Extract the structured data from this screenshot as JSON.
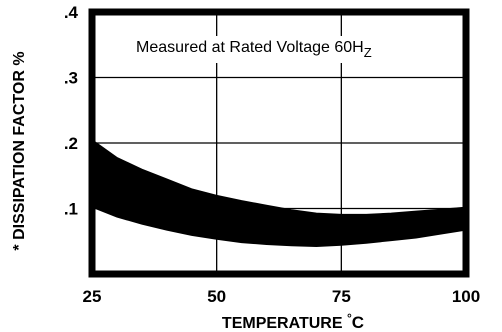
{
  "chart_data": {
    "type": "area",
    "title": "",
    "annotation": {
      "text": "Measured at Rated Voltage 60H",
      "subscript": "Z"
    },
    "xlabel": {
      "text": "TEMPERATURE ",
      "degree": "°",
      "unit": "C"
    },
    "ylabel": "* DISSIPATION FACTOR %",
    "xlim": [
      25,
      100
    ],
    "ylim": [
      0,
      0.4
    ],
    "x_ticks": [
      {
        "value": 25,
        "label": "25"
      },
      {
        "value": 50,
        "label": "50"
      },
      {
        "value": 75,
        "label": "75"
      },
      {
        "value": 100,
        "label": "100"
      }
    ],
    "y_ticks": [
      {
        "value": 0.1,
        "label": ".1"
      },
      {
        "value": 0.2,
        "label": ".2"
      },
      {
        "value": 0.3,
        "label": ".3"
      },
      {
        "value": 0.4,
        "label": ".4"
      }
    ],
    "grid": true,
    "band": {
      "x": [
        25,
        30,
        35,
        40,
        45,
        50,
        55,
        60,
        65,
        70,
        75,
        80,
        85,
        90,
        95,
        100
      ],
      "upper": [
        0.205,
        0.178,
        0.16,
        0.145,
        0.13,
        0.12,
        0.112,
        0.105,
        0.098,
        0.093,
        0.091,
        0.091,
        0.093,
        0.096,
        0.099,
        0.102
      ],
      "lower": [
        0.102,
        0.087,
        0.076,
        0.067,
        0.059,
        0.053,
        0.048,
        0.045,
        0.043,
        0.042,
        0.044,
        0.047,
        0.051,
        0.055,
        0.061,
        0.067
      ]
    },
    "colors": {
      "band": "#000000",
      "axes": "#000000",
      "grid": "#000000"
    }
  }
}
